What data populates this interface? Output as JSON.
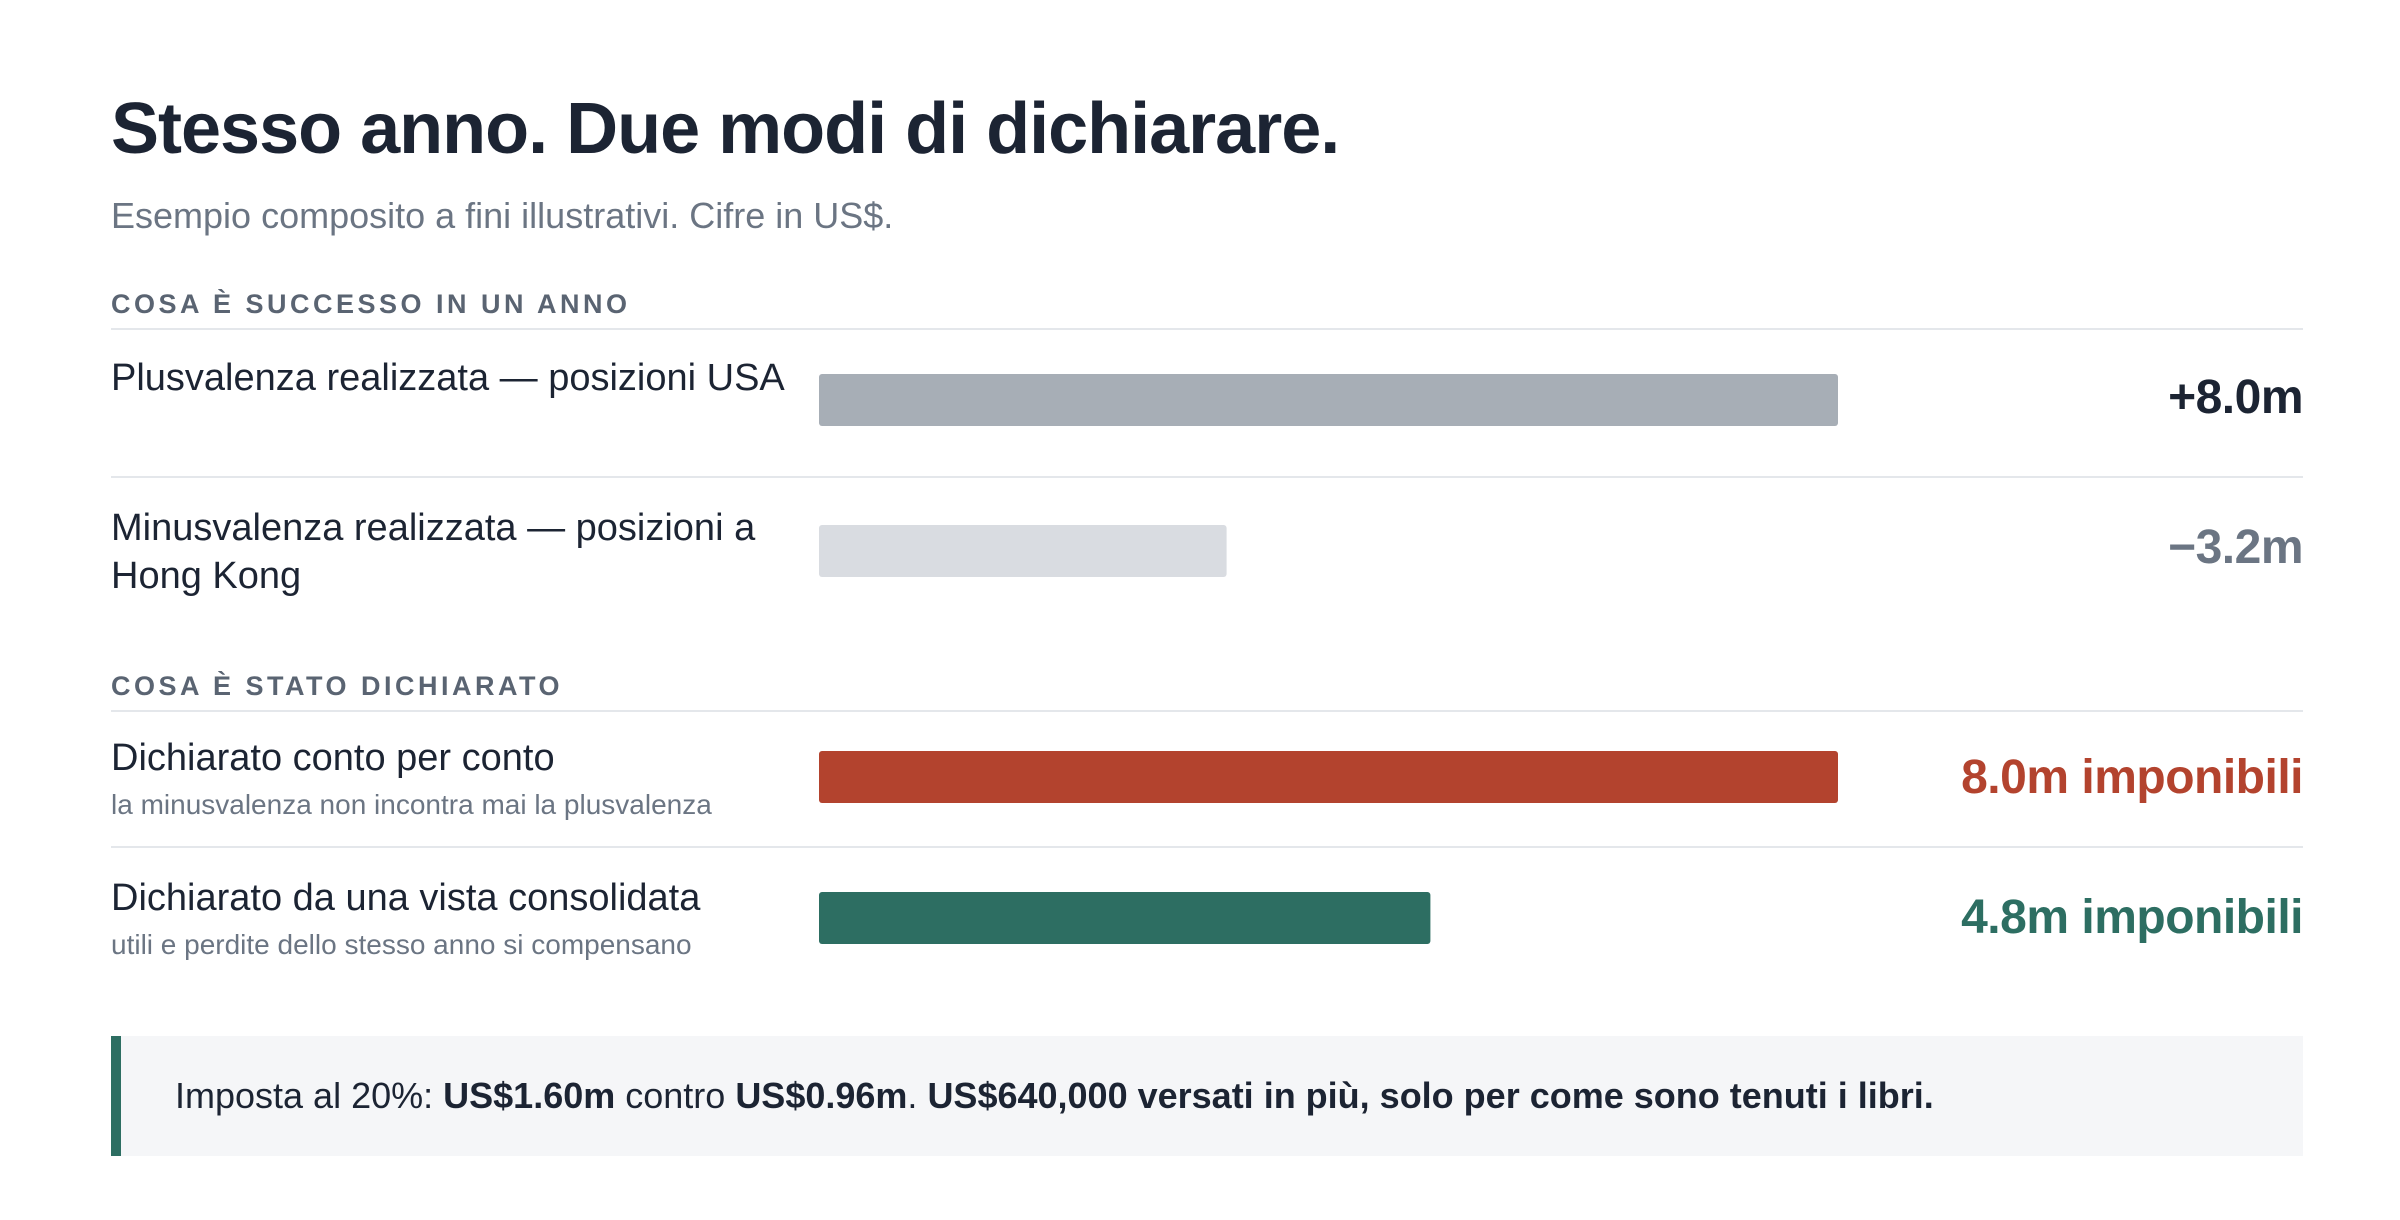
{
  "header": {
    "title": "Stesso anno. Due modi di dichiarare.",
    "subtitle": "Esempio composito a fini illustrativi. Cifre in US$."
  },
  "chart_data": {
    "type": "bar",
    "orientation": "horizontal",
    "groups": [
      {
        "label": "COSA È SUCCESSO IN UN ANNO",
        "items": [
          {
            "label": "Plusvalenza realizzata — posizioni USA",
            "value": 8.0,
            "display": "+8.0m",
            "color": "#a7aeb6"
          },
          {
            "label": "Minusvalenza realizzata — posizioni a Hong Kong",
            "value": -3.2,
            "display": "−3.2m",
            "color": "#d9dce1"
          }
        ]
      },
      {
        "label": "COSA È STATO DICHIARATO",
        "items": [
          {
            "label": "Dichiarato conto per conto",
            "sublabel": "la minusvalenza non incontra mai la plusvalenza",
            "value": 8.0,
            "display": "8.0m imponibili",
            "color": "#b3432e"
          },
          {
            "label": "Dichiarato da una vista consolidata",
            "sublabel": "utili e perdite dello stesso anno si compensano",
            "value": 4.8,
            "display": "4.8m imponibili",
            "color": "#2d6e62"
          }
        ]
      }
    ],
    "xlim": [
      0,
      8.0
    ],
    "value_colors": {
      "positive": "#1c2433",
      "negative": "#6b7583",
      "declared_separate": "#b3432e",
      "declared_consolidated": "#2d6e62"
    }
  },
  "summary": {
    "prefix": "Imposta al 20%: ",
    "amount_a": "US$1.60m",
    "middle": " contro ",
    "amount_b": "US$0.96m",
    "dot": ". ",
    "conclusion": "US$640,000 versati in più, solo per come sono tenuti i libri.",
    "accent": "#2d6e62"
  }
}
